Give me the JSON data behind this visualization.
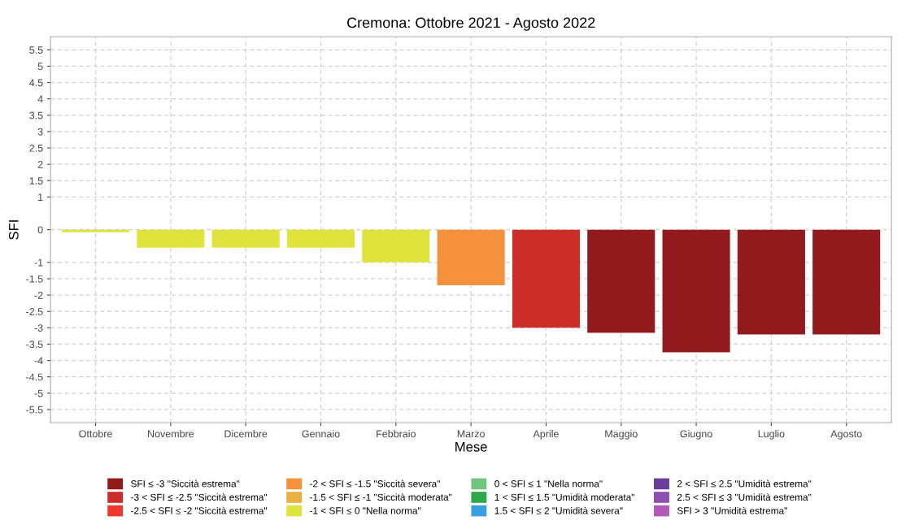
{
  "chart_data": {
    "type": "bar",
    "title": "Cremona: Ottobre 2021 - Agosto 2022",
    "xlabel": "Mese",
    "ylabel": "SFI",
    "categories": [
      "Ottobre",
      "Novembre",
      "Dicembre",
      "Gennaio",
      "Febbraio",
      "Marzo",
      "Aprile",
      "Maggio",
      "Giugno",
      "Luglio",
      "Agosto"
    ],
    "series": [
      {
        "name": "SFI ≤ -3 \"Siccità estrema\"",
        "color": "#921a1d",
        "values": [
          null,
          null,
          null,
          null,
          null,
          null,
          null,
          -3.15,
          -3.75,
          -3.2,
          -3.2
        ]
      },
      {
        "name": "-3 < SFI ≤ -2.5 \"Siccità estrema\"",
        "color": "#cc2d29",
        "values": [
          null,
          null,
          null,
          null,
          null,
          null,
          -3.0,
          null,
          null,
          null,
          null
        ]
      },
      {
        "name": "-2.5 < SFI ≤ -2 \"Siccità estrema\"",
        "color": "#ee3a2c",
        "values": [
          null,
          null,
          null,
          null,
          null,
          null,
          null,
          null,
          null,
          null,
          null
        ]
      },
      {
        "name": "-2 < SFI ≤ -1.5 \"Siccità severa\"",
        "color": "#f5913c",
        "values": [
          null,
          null,
          null,
          null,
          null,
          -1.7,
          null,
          null,
          null,
          null,
          null
        ]
      },
      {
        "name": "-1.5 < SFI ≤ -1 \"Siccità moderata\"",
        "color": "#e9b140",
        "values": [
          null,
          null,
          null,
          null,
          null,
          null,
          null,
          null,
          null,
          null,
          null
        ]
      },
      {
        "name": "-1 < SFI ≤ 0 \"Nella norma\"",
        "color": "#dfe33c",
        "values": [
          -0.08,
          -0.55,
          -0.55,
          -0.55,
          -1.0,
          null,
          null,
          null,
          null,
          null,
          null
        ]
      },
      {
        "name": "0 < SFI ≤ 1 \"Nella norma\"",
        "color": "#6fc47f",
        "values": [
          null,
          null,
          null,
          null,
          null,
          null,
          null,
          null,
          null,
          null,
          null
        ]
      },
      {
        "name": "1 < SFI ≤ 1.5 \"Umidità moderata\"",
        "color": "#2ca84a",
        "values": [
          null,
          null,
          null,
          null,
          null,
          null,
          null,
          null,
          null,
          null,
          null
        ]
      },
      {
        "name": "1.5 < SFI ≤ 2 \"Umidità severa\"",
        "color": "#3a9fdf",
        "values": [
          null,
          null,
          null,
          null,
          null,
          null,
          null,
          null,
          null,
          null,
          null
        ]
      },
      {
        "name": "2 < SFI ≤ 2.5 \"Umidità estrema\"",
        "color": "#6a3d9a",
        "values": [
          null,
          null,
          null,
          null,
          null,
          null,
          null,
          null,
          null,
          null,
          null
        ]
      },
      {
        "name": "2.5 < SFI ≤ 3 \"Umidità estrema\"",
        "color": "#8d4fb0",
        "values": [
          null,
          null,
          null,
          null,
          null,
          null,
          null,
          null,
          null,
          null,
          null
        ]
      },
      {
        "name": "SFI > 3 \"Umidità estrema\"",
        "color": "#b25ab8",
        "values": [
          null,
          null,
          null,
          null,
          null,
          null,
          null,
          null,
          null,
          null,
          null
        ]
      }
    ],
    "ylim": [
      -5.9,
      5.9
    ],
    "yticks": [
      -5.5,
      -5,
      -4.5,
      -4,
      -3.5,
      -3,
      -2.5,
      -2,
      -1.5,
      -1,
      0,
      1,
      1.5,
      2,
      2.5,
      3,
      3.5,
      4,
      4.5,
      5,
      5.5
    ],
    "grid": true,
    "legend": "bottom"
  }
}
